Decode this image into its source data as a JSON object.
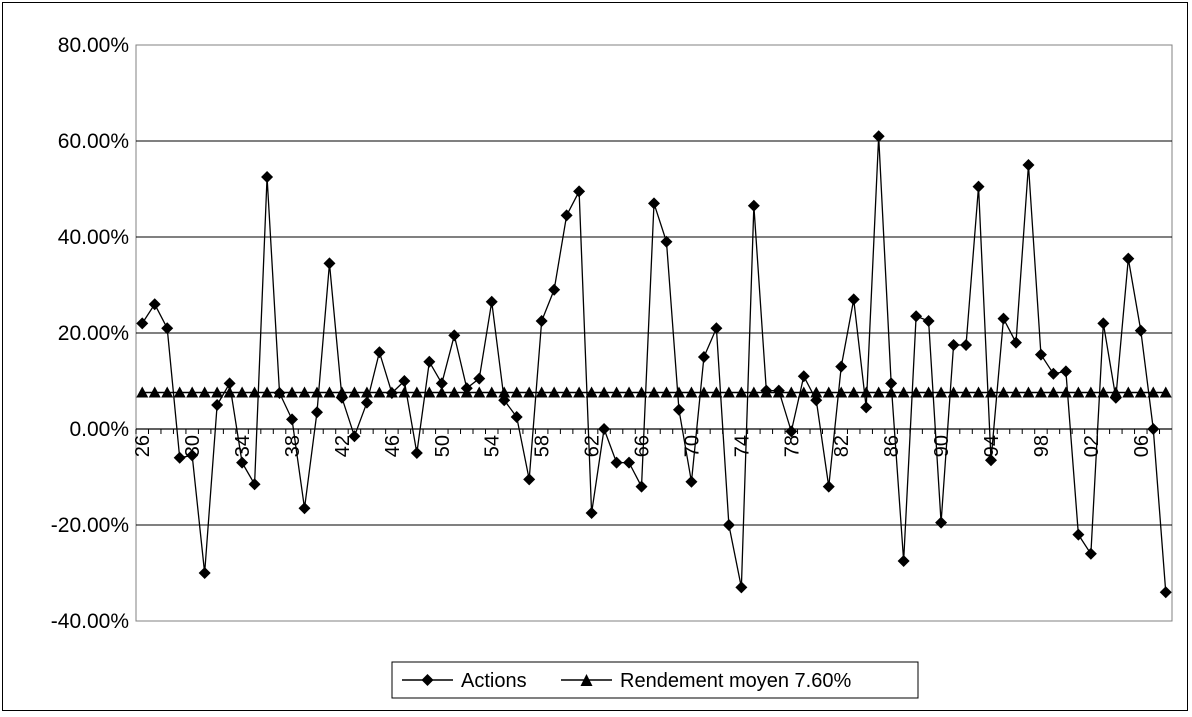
{
  "chart_data": {
    "type": "line",
    "title": "",
    "xlabel": "",
    "ylabel": "",
    "ylim": [
      -0.4,
      0.8
    ],
    "y_tick_values": [
      -0.4,
      -0.2,
      0.0,
      0.2,
      0.4,
      0.6,
      0.8
    ],
    "y_tick_labels": [
      "-40.00%",
      "-20.00%",
      "0.00%",
      "20.00%",
      "40.00%",
      "60.00%",
      "80.00%"
    ],
    "grid": "horizontal",
    "legend_position": "bottom",
    "x": [
      "26",
      "27",
      "28",
      "29",
      "30",
      "31",
      "32",
      "33",
      "34",
      "35",
      "36",
      "37",
      "38",
      "39",
      "40",
      "41",
      "42",
      "43",
      "44",
      "45",
      "46",
      "47",
      "48",
      "49",
      "50",
      "51",
      "52",
      "53",
      "54",
      "55",
      "56",
      "57",
      "58",
      "59",
      "60",
      "61",
      "62",
      "63",
      "64",
      "65",
      "66",
      "67",
      "68",
      "69",
      "70",
      "71",
      "72",
      "73",
      "74",
      "75",
      "76",
      "77",
      "78",
      "79",
      "80",
      "81",
      "82",
      "83",
      "84",
      "85",
      "86",
      "87",
      "88",
      "89",
      "90",
      "91",
      "92",
      "93",
      "94",
      "95",
      "96",
      "97",
      "98",
      "99",
      "00",
      "01",
      "02",
      "03",
      "04",
      "05",
      "06",
      "07",
      "08"
    ],
    "x_tick_labels": [
      "26",
      "30",
      "34",
      "38",
      "42",
      "46",
      "50",
      "54",
      "58",
      "62",
      "66",
      "70",
      "74",
      "78",
      "82",
      "86",
      "90",
      "94",
      "98",
      "02",
      "06"
    ],
    "series": [
      {
        "name": "Actions",
        "marker": "diamond",
        "color": "#000000",
        "values": [
          0.22,
          0.26,
          0.21,
          -0.06,
          -0.055,
          -0.3,
          0.05,
          0.095,
          -0.07,
          -0.115,
          0.525,
          0.075,
          0.02,
          -0.165,
          0.035,
          0.345,
          0.065,
          -0.015,
          0.055,
          0.16,
          0.075,
          0.1,
          -0.05,
          0.14,
          0.095,
          0.195,
          0.085,
          0.105,
          0.265,
          0.06,
          0.025,
          -0.105,
          0.225,
          0.29,
          0.445,
          0.495,
          -0.175,
          0.0,
          -0.07,
          -0.07,
          -0.12,
          0.47,
          0.39,
          0.04,
          -0.11,
          0.15,
          0.21,
          -0.2,
          -0.33,
          0.465,
          0.08,
          0.08,
          -0.005,
          0.11,
          0.06,
          -0.12,
          0.13,
          0.27,
          0.045,
          0.61,
          0.095,
          -0.275,
          0.235,
          0.225,
          -0.195,
          0.175,
          0.175,
          0.505,
          -0.065,
          0.23,
          0.18,
          0.55,
          0.155,
          0.115,
          0.12,
          -0.22,
          -0.26,
          0.22,
          0.065,
          0.355,
          0.205,
          0.0,
          -0.34
        ]
      },
      {
        "name": "Rendement moyen 7.60%",
        "marker": "triangle",
        "color": "#000000",
        "constant": 0.076
      }
    ]
  }
}
